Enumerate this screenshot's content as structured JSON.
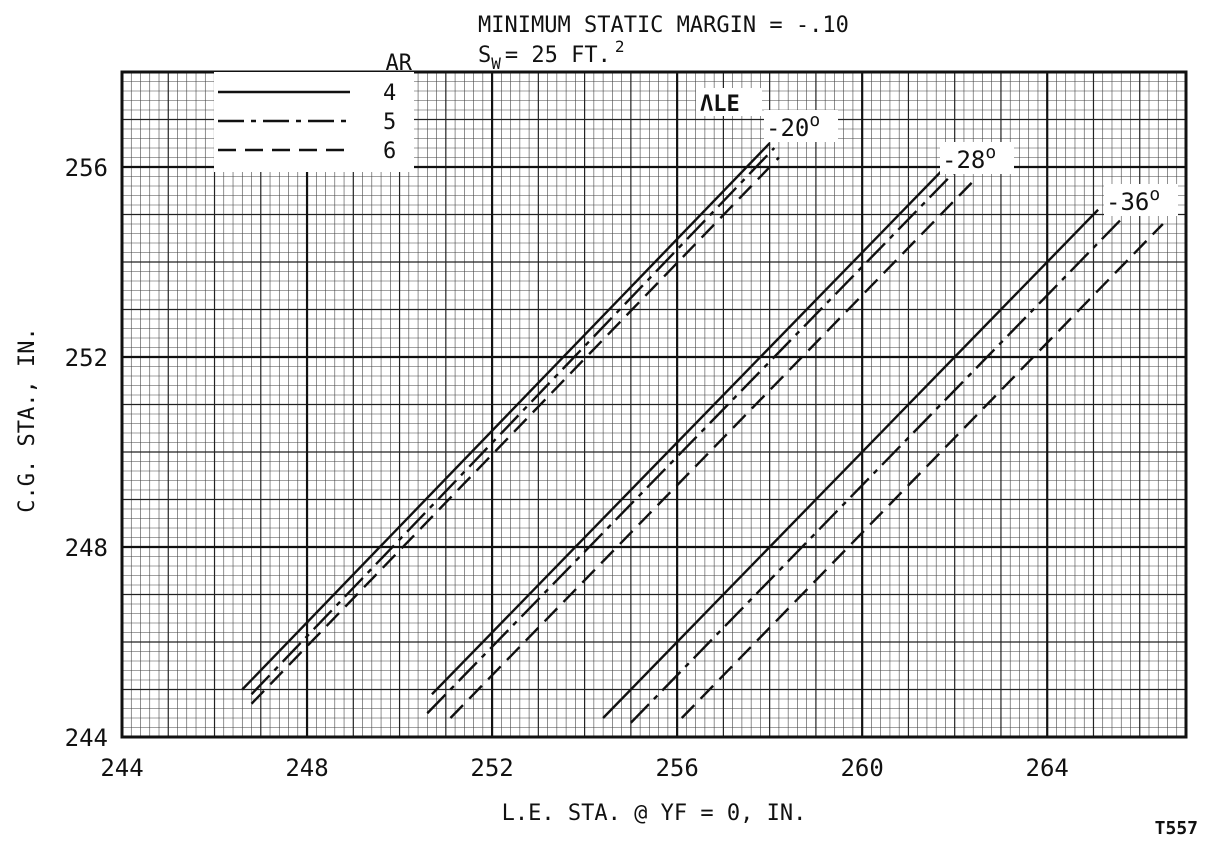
{
  "header": {
    "title": "MINIMUM STATIC MARGIN = -.10",
    "subtitle_prefix": "S",
    "subtitle_subscript": "W",
    "subtitle_value": "= 25 FT.",
    "subtitle_superscript": "2"
  },
  "legend": {
    "title": "AR",
    "sweep_label": "ΛLE",
    "entries": [
      {
        "label": "4",
        "style": "solid"
      },
      {
        "label": "5",
        "style": "dash-dot"
      },
      {
        "label": "6",
        "style": "dashed"
      }
    ]
  },
  "figure_id": "T557",
  "chart_data": {
    "type": "line",
    "xlabel": "L.E. STA. @ YF = 0, IN.",
    "ylabel": "C.G. STA., IN.",
    "xlim": [
      244,
      267
    ],
    "ylim": [
      244,
      258
    ],
    "xticks": [
      "244",
      "248",
      "252",
      "256",
      "260",
      "264"
    ],
    "yticks": [
      "244",
      "248",
      "252",
      "256"
    ],
    "grid": true,
    "legend_position": "top-left",
    "groups": [
      {
        "sweep_label": "-20",
        "degree_mark": "o",
        "series": [
          {
            "ar": "4",
            "style": "solid",
            "x": [
              246.6,
              258.0
            ],
            "y": [
              245.0,
              256.5
            ]
          },
          {
            "ar": "5",
            "style": "dash-dot",
            "x": [
              246.8,
              258.1
            ],
            "y": [
              244.9,
              256.4
            ]
          },
          {
            "ar": "6",
            "style": "dashed",
            "x": [
              246.8,
              258.2
            ],
            "y": [
              244.7,
              256.2
            ]
          }
        ]
      },
      {
        "sweep_label": "-28",
        "degree_mark": "o",
        "series": [
          {
            "ar": "4",
            "style": "solid",
            "x": [
              250.7,
              261.7
            ],
            "y": [
              244.9,
              255.9
            ]
          },
          {
            "ar": "5",
            "style": "dash-dot",
            "x": [
              250.6,
              262.0
            ],
            "y": [
              244.5,
              255.9
            ]
          },
          {
            "ar": "6",
            "style": "dashed",
            "x": [
              251.1,
              262.5
            ],
            "y": [
              244.4,
              255.8
            ]
          }
        ]
      },
      {
        "sweep_label": "-36",
        "degree_mark": "o",
        "series": [
          {
            "ar": "4",
            "style": "solid",
            "x": [
              254.4,
              265.1
            ],
            "y": [
              244.4,
              255.1
            ]
          },
          {
            "ar": "5",
            "style": "dash-dot",
            "x": [
              255.0,
              265.6
            ],
            "y": [
              244.3,
              254.9
            ]
          },
          {
            "ar": "6",
            "style": "dashed",
            "x": [
              256.1,
              266.5
            ],
            "y": [
              244.4,
              254.8
            ]
          }
        ]
      }
    ]
  }
}
